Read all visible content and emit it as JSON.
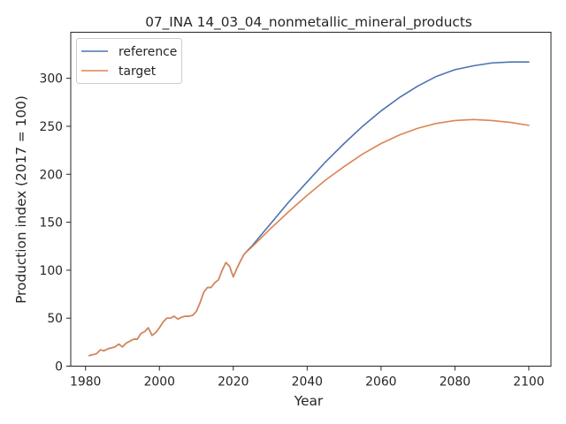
{
  "chart_data": {
    "type": "line",
    "title": "07_INA 14_03_04_nonmetallic_mineral_products",
    "xlabel": "Year",
    "ylabel": "Production index (2017 = 100)",
    "xlim": [
      1976,
      2106
    ],
    "ylim": [
      0,
      348
    ],
    "xticks": [
      1980,
      2000,
      2020,
      2040,
      2060,
      2080,
      2100
    ],
    "yticks": [
      0,
      50,
      100,
      150,
      200,
      250,
      300
    ],
    "legend_position": "upper-left",
    "grid": false,
    "series": [
      {
        "name": "reference",
        "color": "#4c72b0",
        "x": [
          1981,
          1982,
          1983,
          1984,
          1985,
          1986,
          1987,
          1988,
          1989,
          1990,
          1991,
          1992,
          1993,
          1994,
          1995,
          1996,
          1997,
          1998,
          1999,
          2000,
          2001,
          2002,
          2003,
          2004,
          2005,
          2006,
          2007,
          2008,
          2009,
          2010,
          2011,
          2012,
          2013,
          2014,
          2015,
          2016,
          2017,
          2018,
          2019,
          2020,
          2021,
          2022,
          2023,
          2025,
          2030,
          2035,
          2040,
          2045,
          2050,
          2055,
          2060,
          2065,
          2070,
          2075,
          2080,
          2085,
          2090,
          2095,
          2100
        ],
        "y": [
          11,
          12,
          13,
          17,
          16,
          18,
          19,
          20,
          23,
          20,
          24,
          26,
          28,
          28,
          34,
          36,
          40,
          32,
          35,
          40,
          46,
          50,
          50,
          52,
          49,
          51,
          52,
          52,
          53,
          57,
          66,
          77,
          82,
          82,
          87,
          90,
          100,
          108,
          104,
          93,
          102,
          110,
          117,
          125,
          148,
          171,
          192,
          213,
          232,
          250,
          266,
          280,
          292,
          302,
          309,
          313,
          316,
          317,
          317
        ]
      },
      {
        "name": "target",
        "color": "#dd8452",
        "x": [
          1981,
          1982,
          1983,
          1984,
          1985,
          1986,
          1987,
          1988,
          1989,
          1990,
          1991,
          1992,
          1993,
          1994,
          1995,
          1996,
          1997,
          1998,
          1999,
          2000,
          2001,
          2002,
          2003,
          2004,
          2005,
          2006,
          2007,
          2008,
          2009,
          2010,
          2011,
          2012,
          2013,
          2014,
          2015,
          2016,
          2017,
          2018,
          2019,
          2020,
          2021,
          2022,
          2023,
          2025,
          2030,
          2035,
          2040,
          2045,
          2050,
          2055,
          2060,
          2065,
          2070,
          2075,
          2080,
          2085,
          2090,
          2095,
          2100
        ],
        "y": [
          11,
          12,
          13,
          17,
          16,
          18,
          19,
          20,
          23,
          20,
          24,
          26,
          28,
          28,
          34,
          36,
          40,
          32,
          35,
          40,
          46,
          50,
          50,
          52,
          49,
          51,
          52,
          52,
          53,
          57,
          66,
          77,
          82,
          82,
          87,
          90,
          100,
          108,
          104,
          93,
          102,
          110,
          117,
          124,
          143,
          161,
          178,
          194,
          208,
          221,
          232,
          241,
          248,
          253,
          256,
          257,
          256,
          254,
          251
        ]
      }
    ]
  }
}
